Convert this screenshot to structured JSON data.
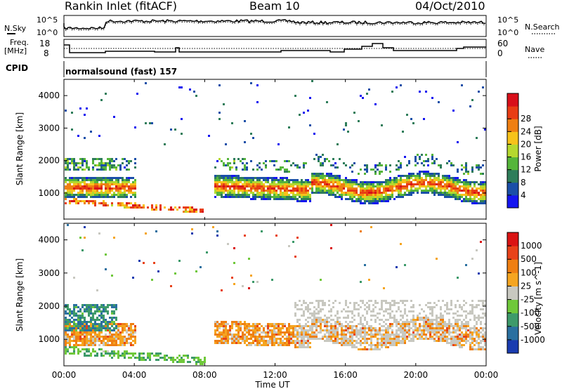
{
  "header": {
    "station": "Rankin Inlet (fitACF)",
    "beam": "Beam 10",
    "date": "04/Oct/2010"
  },
  "strips": {
    "nsky_label": "N.Sky",
    "nsky_ticks": [
      "10^5",
      "10^0"
    ],
    "nsearch_label": "N.Search",
    "nsearch_ticks": [
      "10^5",
      "10^0"
    ],
    "freq_label_1": "Freq.",
    "freq_label_2": "[MHz]",
    "freq_ticks": [
      "18",
      "8"
    ],
    "nave_label": "Nave",
    "nave_ticks": [
      "60",
      "0"
    ],
    "cpid_label": "CPID",
    "cpid_value": "normalsound (fast) 157"
  },
  "chart_data": [
    {
      "type": "heatmap",
      "name": "power",
      "ylabel": "Slant Range [km]",
      "ylim": [
        200,
        4500
      ],
      "yticks": [
        "1000",
        "2000",
        "3000",
        "4000"
      ],
      "xlim": [
        0,
        24
      ],
      "colorbar": {
        "label": "Power [dB]",
        "ticks": [
          "4",
          "8",
          "12",
          "16",
          "20",
          "24",
          "28"
        ],
        "colors": [
          "#1515f0",
          "#1a4fa8",
          "#2e7d5a",
          "#55b53a",
          "#b5d82e",
          "#f7c21a",
          "#ef7f12",
          "#e83d14",
          "#d80f1a"
        ]
      }
    },
    {
      "type": "heatmap",
      "name": "velocity",
      "ylabel": "Slant Range [km]",
      "ylim": [
        200,
        4500
      ],
      "yticks": [
        "1000",
        "2000",
        "3000",
        "4000"
      ],
      "xlim": [
        0,
        24
      ],
      "xticks": [
        "00:00",
        "04:00",
        "08:00",
        "12:00",
        "16:00",
        "20:00",
        "00:00"
      ],
      "xlabel": "Time UT",
      "colorbar": {
        "label": "Velocity [m s^-1]",
        "ticks": [
          "1000",
          "500",
          "100",
          "25",
          "-25",
          "-100",
          "-500",
          "-1000"
        ],
        "colors": [
          "#1a3cb0",
          "#2a70a0",
          "#3d9a6a",
          "#6fc83a",
          "#c8c8c0",
          "#f5a520",
          "#ef7f12",
          "#e8421a",
          "#da1414"
        ]
      }
    }
  ]
}
